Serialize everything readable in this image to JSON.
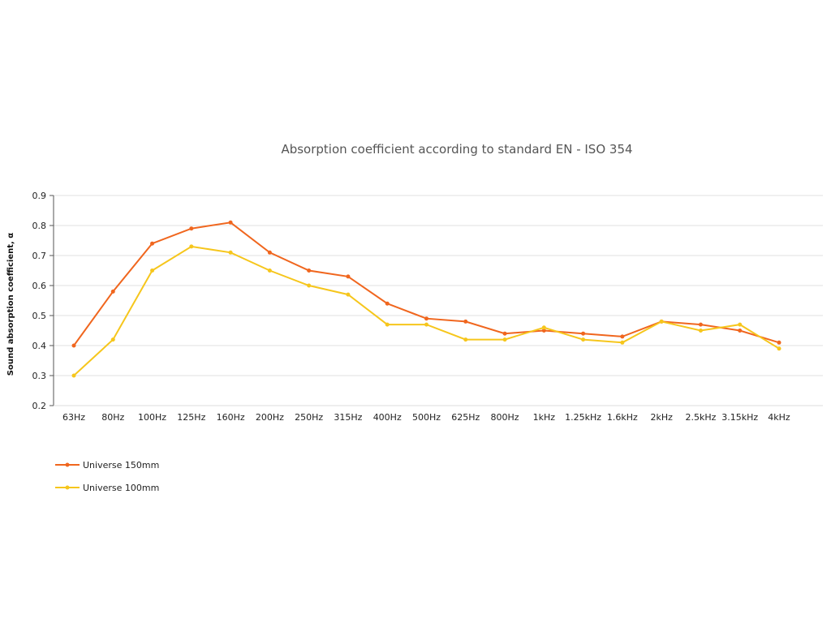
{
  "chart_data": {
    "type": "line",
    "title": "Absorption coefficient according to standard EN - ISO 354",
    "xlabel": "",
    "ylabel": "Sound absorption coefficient, α",
    "ylim": [
      0.2,
      0.9
    ],
    "yticks": [
      "0.9",
      "0.8",
      "0.7",
      "0.6",
      "0.5",
      "0.4",
      "0.3",
      "0.2"
    ],
    "grid": true,
    "legend_position": "bottom-left",
    "categories": [
      "63Hz",
      "80Hz",
      "100Hz",
      "125Hz",
      "160Hz",
      "200Hz",
      "250Hz",
      "315Hz",
      "400Hz",
      "500Hz",
      "625Hz",
      "800Hz",
      "1kHz",
      "1.25kHz",
      "1.6kHz",
      "2kHz",
      "2.5kHz",
      "3.15kHz",
      "4kHz"
    ],
    "series": [
      {
        "name": "Universe 150mm",
        "color": "#f0661e",
        "values": [
          0.4,
          0.58,
          0.74,
          0.79,
          0.81,
          0.71,
          0.65,
          0.63,
          0.54,
          0.49,
          0.48,
          0.44,
          0.45,
          0.44,
          0.43,
          0.48,
          0.47,
          0.45,
          0.41
        ]
      },
      {
        "name": "Universe 100mm",
        "color": "#f6c61c",
        "values": [
          0.3,
          0.42,
          0.65,
          0.73,
          0.71,
          0.65,
          0.6,
          0.57,
          0.47,
          0.47,
          0.42,
          0.42,
          0.46,
          0.42,
          0.41,
          0.48,
          0.45,
          0.47,
          0.39
        ]
      }
    ]
  }
}
